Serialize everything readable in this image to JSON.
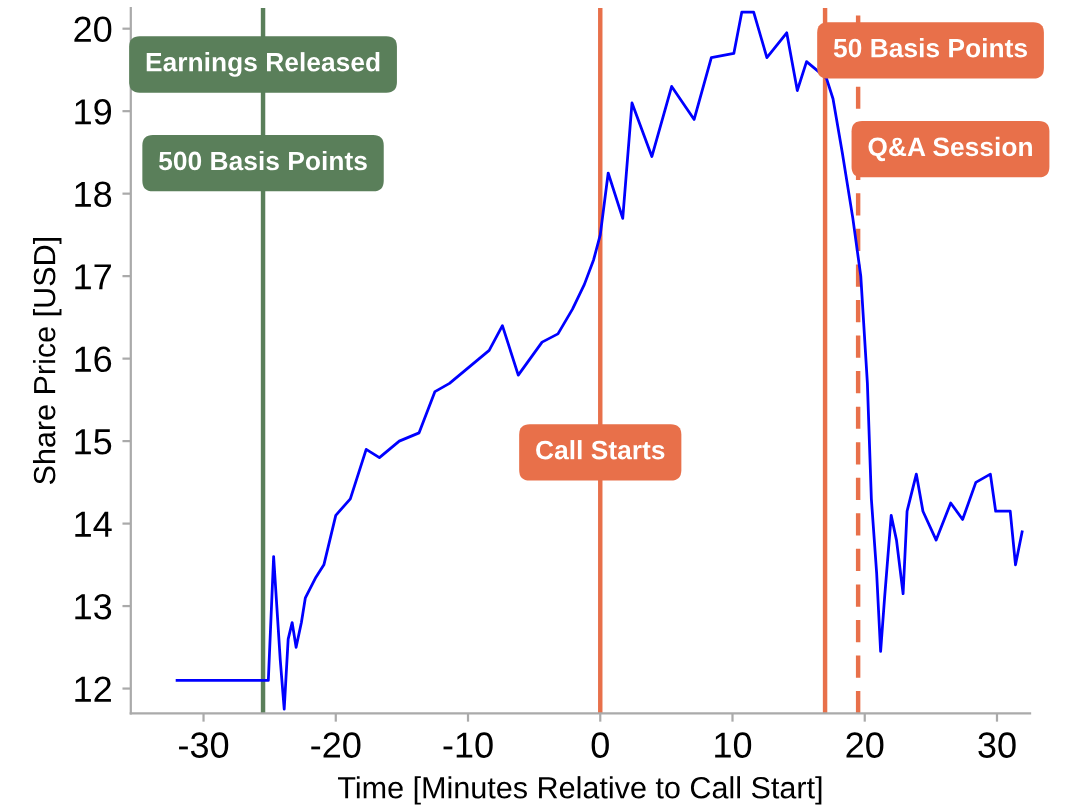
{
  "chart_data": {
    "type": "line",
    "xlabel": "Time [Minutes Relative to Call Start]",
    "ylabel": "Share Price [USD]",
    "xlim": [
      -35.5,
      32.5
    ],
    "xticks": [
      -30,
      -20,
      -10,
      0,
      10,
      20,
      30
    ],
    "ylim": [
      11.7,
      20.25
    ],
    "yticks": [
      12,
      13,
      14,
      15,
      16,
      17,
      18,
      19,
      20
    ],
    "grid": false,
    "legend": false,
    "annotations": [
      "500 Basis Points"
    ],
    "series": [
      {
        "color": "#0000ff",
        "x": [
          -32.0,
          -25.3,
          -25.1,
          -24.7,
          -24.2,
          -23.9,
          -23.6,
          -23.3,
          -23.0,
          -22.6,
          -22.3,
          -21.5,
          -20.9,
          -20.0,
          -18.9,
          -17.7,
          -16.7,
          -15.2,
          -13.7,
          -12.5,
          -11.4,
          -9.9,
          -8.4,
          -7.4,
          -6.6,
          -6.2,
          -5.3,
          -4.4,
          -3.2,
          -2.1,
          -1.2,
          -0.5,
          0,
          0.6,
          1.7,
          2.4,
          3.9,
          5.4,
          7.1,
          8.4,
          10.1,
          10.7,
          11.6,
          12.6,
          14.1,
          14.9,
          15.6,
          17.1,
          17.6,
          18.3,
          19.1,
          19.7,
          20.2,
          20.5,
          20.9,
          21.2,
          21.5,
          22.0,
          22.4,
          22.9,
          23.2,
          23.9,
          24.4,
          25.4,
          26.5,
          27.4,
          28.4,
          29.5,
          29.9,
          31.0,
          31.4,
          31.9
        ],
        "values": [
          12.1,
          12.1,
          12.1,
          13.6,
          12.35,
          11.75,
          12.6,
          12.8,
          12.5,
          12.8,
          13.1,
          13.35,
          13.5,
          14.1,
          14.3,
          14.9,
          14.8,
          15.0,
          15.1,
          15.6,
          15.7,
          15.9,
          16.1,
          16.4,
          16.0,
          15.8,
          16.0,
          16.2,
          16.3,
          16.6,
          16.9,
          17.2,
          17.5,
          18.25,
          17.7,
          19.1,
          18.45,
          19.3,
          18.9,
          19.65,
          19.7,
          20.2,
          20.2,
          19.65,
          19.95,
          19.25,
          19.6,
          19.4,
          19.15,
          18.5,
          17.7,
          17.0,
          15.7,
          14.3,
          13.4,
          12.45,
          13.1,
          14.1,
          13.8,
          13.15,
          14.15,
          14.6,
          14.15,
          13.8,
          14.25,
          14.05,
          14.5,
          14.6,
          14.15,
          14.15,
          13.5,
          13.9
        ]
      }
    ],
    "ref_lines": [
      {
        "axis": "x",
        "value": -25.5,
        "label": "Earnings Released",
        "color": "#5a7f5a",
        "line_style": "solid"
      },
      {
        "axis": "x",
        "value": 0,
        "label": "Call Starts",
        "color": "#e8704a",
        "line_style": "solid"
      },
      {
        "axis": "x",
        "value": 17,
        "label": "50 Basis Points",
        "color": "#e8704a",
        "line_style": "solid"
      },
      {
        "axis": "x",
        "value": 19.5,
        "label": "Q&A Session",
        "color": "#e8704a",
        "line_style": "dashed"
      }
    ]
  }
}
